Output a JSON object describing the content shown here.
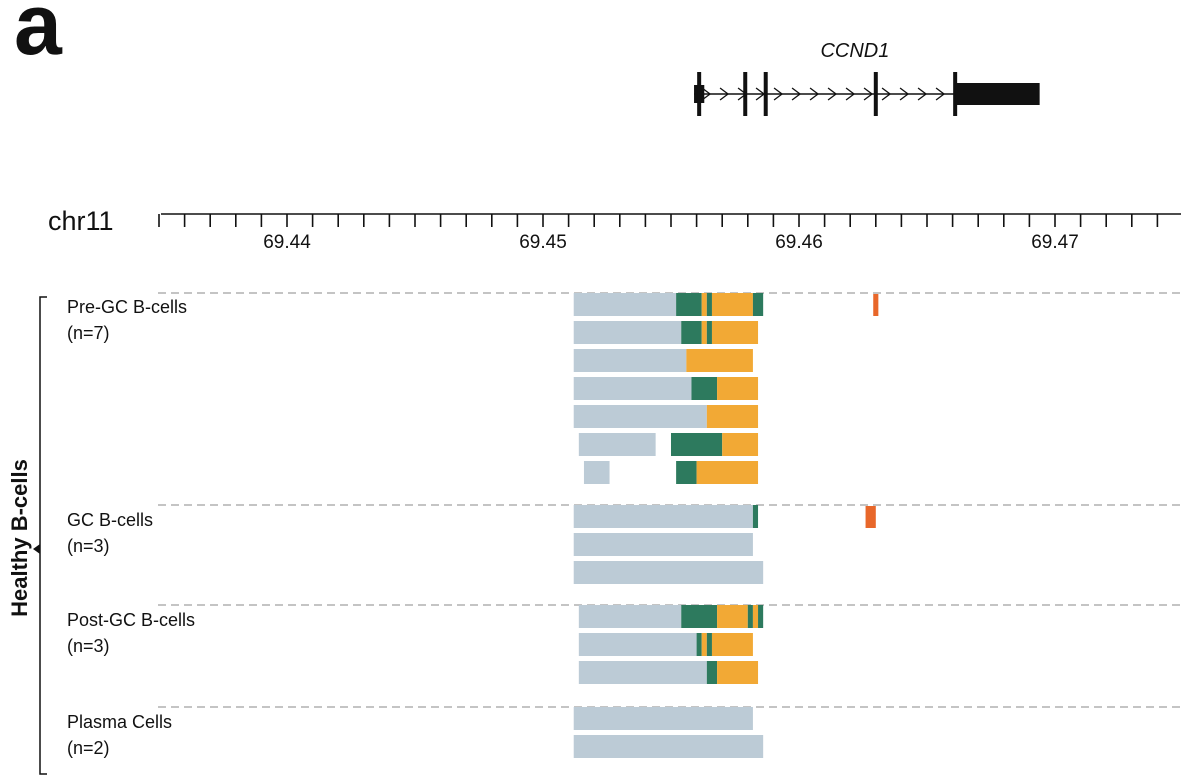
{
  "panel_letter": "a",
  "gene": {
    "name": "CCND1",
    "start": 69.4561,
    "end": 69.4691,
    "exons": [
      69.4561,
      69.4579,
      69.4587,
      69.463,
      69.4661
    ],
    "utr3": [
      69.4661,
      69.4694
    ],
    "utr5": [
      69.4559,
      69.4563
    ]
  },
  "axis": {
    "chromosome": "chr11",
    "min": 69.435,
    "max": 69.475,
    "tick_step": 0.001,
    "labeled_ticks": [
      "69.44",
      "69.45",
      "69.46",
      "69.47"
    ]
  },
  "colors": {
    "gray": "#bccbd6",
    "green": "#2d7a5e",
    "orange": "#f2a935",
    "red": "#e8672a"
  },
  "side_label": "Healthy B-cells",
  "groups": [
    {
      "title": "Pre-GC B-cells",
      "n": "(n=7)",
      "marker": [
        69.4629,
        69.4631
      ],
      "rows": [
        [
          [
            69.4512,
            69.4552,
            "gray"
          ],
          [
            69.4552,
            69.4562,
            "green"
          ],
          [
            69.4562,
            69.4564,
            "orange"
          ],
          [
            69.4564,
            69.4566,
            "green"
          ],
          [
            69.4566,
            69.4582,
            "orange"
          ],
          [
            69.4582,
            69.4586,
            "green"
          ]
        ],
        [
          [
            69.4512,
            69.4554,
            "gray"
          ],
          [
            69.4554,
            69.4562,
            "green"
          ],
          [
            69.4562,
            69.4564,
            "orange"
          ],
          [
            69.4564,
            69.4566,
            "green"
          ],
          [
            69.4566,
            69.4584,
            "orange"
          ]
        ],
        [
          [
            69.4512,
            69.4556,
            "gray"
          ],
          [
            69.4556,
            69.4582,
            "orange"
          ]
        ],
        [
          [
            69.4512,
            69.4558,
            "gray"
          ],
          [
            69.4558,
            69.4568,
            "green"
          ],
          [
            69.4568,
            69.4584,
            "orange"
          ]
        ],
        [
          [
            69.4512,
            69.4564,
            "gray"
          ],
          [
            69.4564,
            69.4584,
            "orange"
          ]
        ],
        [
          [
            69.4514,
            69.4544,
            "gray"
          ],
          [
            69.455,
            69.457,
            "green"
          ],
          [
            69.457,
            69.4584,
            "orange"
          ]
        ],
        [
          [
            69.4516,
            69.4526,
            "gray"
          ],
          [
            69.4552,
            69.456,
            "green"
          ],
          [
            69.456,
            69.4584,
            "orange"
          ]
        ]
      ]
    },
    {
      "title": "GC B-cells",
      "n": "(n=3)",
      "marker": [
        69.4626,
        69.463
      ],
      "rows": [
        [
          [
            69.4512,
            69.4582,
            "gray"
          ],
          [
            69.4582,
            69.4584,
            "green"
          ]
        ],
        [
          [
            69.4512,
            69.4582,
            "gray"
          ]
        ],
        [
          [
            69.4512,
            69.4586,
            "gray"
          ]
        ]
      ]
    },
    {
      "title": "Post-GC B-cells",
      "n": "(n=3)",
      "marker": null,
      "rows": [
        [
          [
            69.4514,
            69.4554,
            "gray"
          ],
          [
            69.4554,
            69.4568,
            "green"
          ],
          [
            69.4568,
            69.458,
            "orange"
          ],
          [
            69.458,
            69.4582,
            "green"
          ],
          [
            69.4582,
            69.4584,
            "orange"
          ],
          [
            69.4584,
            69.4586,
            "green"
          ]
        ],
        [
          [
            69.4514,
            69.456,
            "gray"
          ],
          [
            69.456,
            69.4562,
            "green"
          ],
          [
            69.4562,
            69.4564,
            "orange"
          ],
          [
            69.4564,
            69.4566,
            "green"
          ],
          [
            69.4566,
            69.4582,
            "orange"
          ]
        ],
        [
          [
            69.4514,
            69.4564,
            "gray"
          ],
          [
            69.4564,
            69.4568,
            "green"
          ],
          [
            69.4568,
            69.4584,
            "orange"
          ]
        ]
      ]
    },
    {
      "title": "Plasma Cells",
      "n": "(n=2)",
      "marker": null,
      "rows": [
        [
          [
            69.4512,
            69.4582,
            "gray"
          ]
        ],
        [
          [
            69.4512,
            69.4586,
            "gray"
          ]
        ]
      ]
    }
  ]
}
